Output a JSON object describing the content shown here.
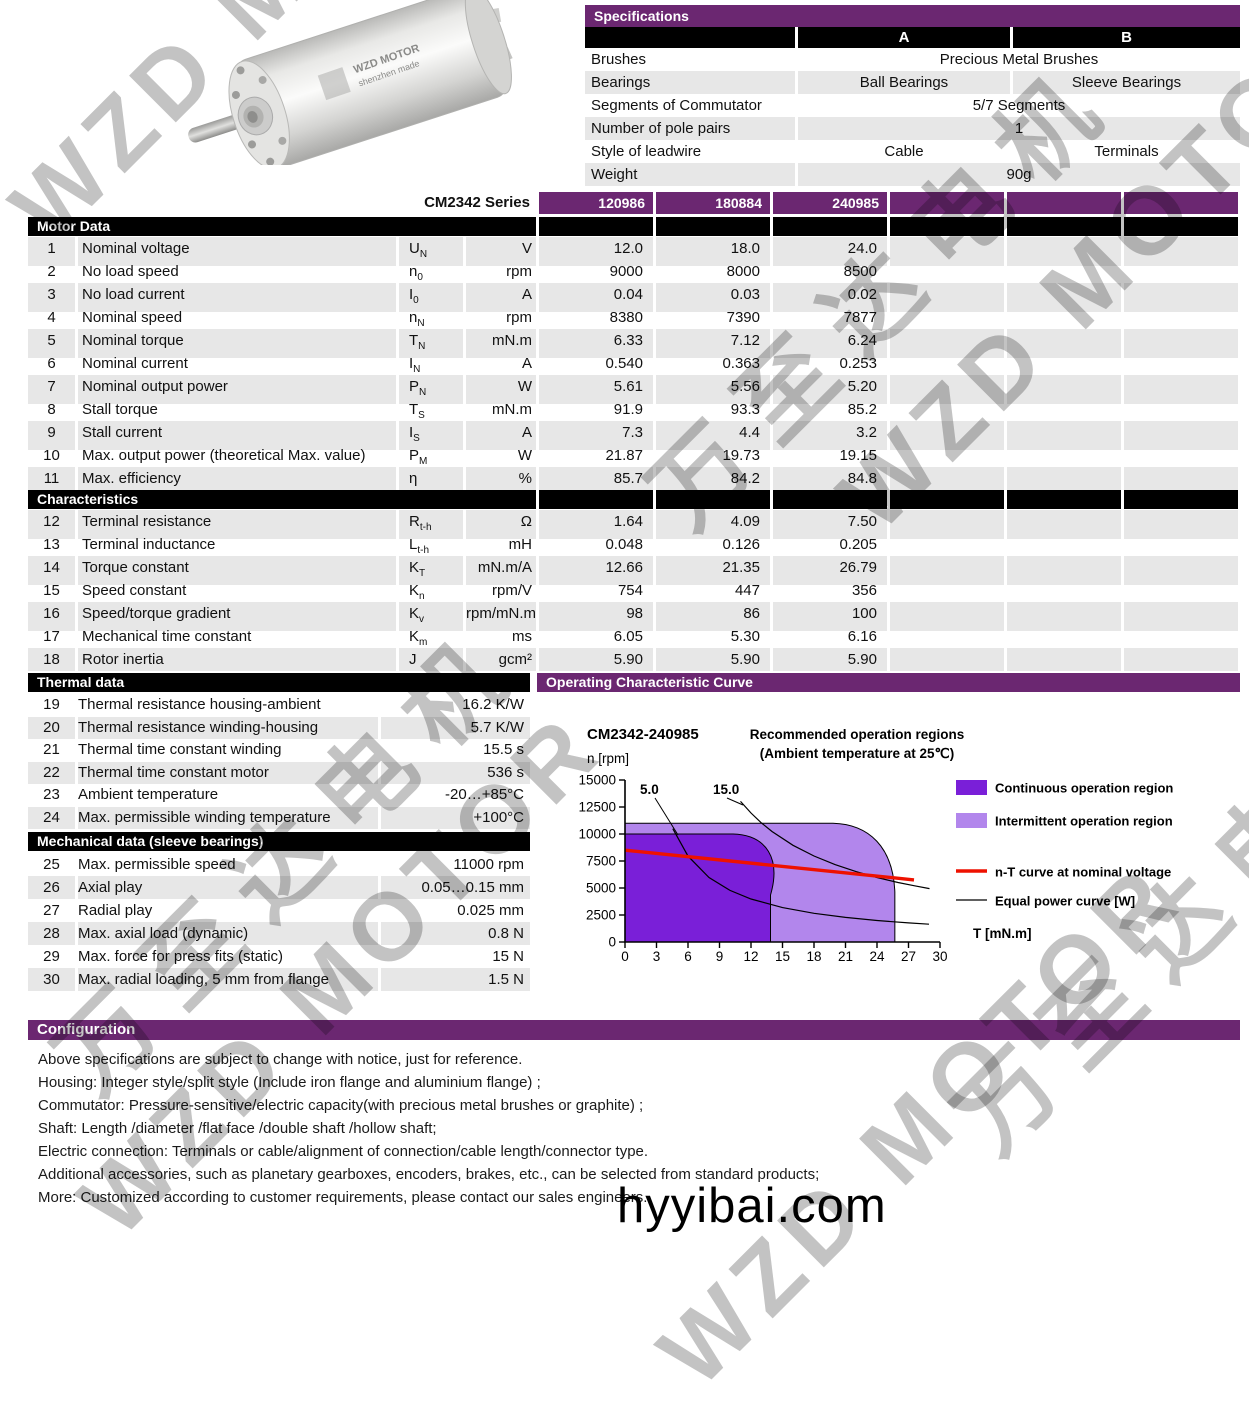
{
  "colors": {
    "header_purple": "#6B2771",
    "row_gray": "#e7e7e7",
    "continuous_region": "#7A1FD8",
    "intermittent_region": "#B286EC",
    "nt_curve_red": "#EE1100"
  },
  "watermark": {
    "cn": "万至达电机",
    "en": "WZD MOTOR",
    "site": "hyyibai.com"
  },
  "motor_photo": {
    "brand": "WZD MOTOR",
    "origin": "shenzhen made"
  },
  "specifications": {
    "title": "Specifications",
    "col_a": "A",
    "col_b": "B",
    "rows": [
      {
        "label": "Brushes",
        "a": "Precious Metal Brushes",
        "span": true
      },
      {
        "label": "Bearings",
        "a": "Ball Bearings",
        "b": "Sleeve Bearings",
        "span": false
      },
      {
        "label": "Segments of Commutator",
        "a": "5/7 Segments",
        "span": true
      },
      {
        "label": "Number of pole pairs",
        "a": "1",
        "span": true
      },
      {
        "label": "Style of leadwire",
        "a": "Cable",
        "b": "Terminals",
        "span": false
      },
      {
        "label": "Weight",
        "a": "90g",
        "span": true
      }
    ]
  },
  "series": {
    "label": "CM2342 Series",
    "variants": [
      "120986",
      "180884",
      "240985",
      "",
      "",
      ""
    ]
  },
  "motor_data": {
    "title": "Motor Data",
    "rows": [
      {
        "no": "1",
        "param": "Nominal voltage",
        "sym": "U",
        "sub": "N",
        "unit": "V",
        "values": [
          "12.0",
          "18.0",
          "24.0"
        ]
      },
      {
        "no": "2",
        "param": "No load speed",
        "sym": "n",
        "sub": "0",
        "unit": "rpm",
        "values": [
          "9000",
          "8000",
          "8500"
        ]
      },
      {
        "no": "3",
        "param": "No load current",
        "sym": "I",
        "sub": "0",
        "unit": "A",
        "values": [
          "0.04",
          "0.03",
          "0.02"
        ]
      },
      {
        "no": "4",
        "param": "Nominal speed",
        "sym": "n",
        "sub": "N",
        "unit": "rpm",
        "values": [
          "8380",
          "7390",
          "7877"
        ]
      },
      {
        "no": "5",
        "param": "Nominal torque",
        "sym": "T",
        "sub": "N",
        "unit": "mN.m",
        "values": [
          "6.33",
          "7.12",
          "6.24"
        ]
      },
      {
        "no": "6",
        "param": "Nominal current",
        "sym": "I",
        "sub": "N",
        "unit": "A",
        "values": [
          "0.540",
          "0.363",
          "0.253"
        ]
      },
      {
        "no": "7",
        "param": "Nominal output power",
        "sym": "P",
        "sub": "N",
        "unit": "W",
        "values": [
          "5.61",
          "5.56",
          "5.20"
        ]
      },
      {
        "no": "8",
        "param": "Stall torque",
        "sym": "T",
        "sub": "S",
        "unit": "mN.m",
        "values": [
          "91.9",
          "93.3",
          "85.2"
        ]
      },
      {
        "no": "9",
        "param": "Stall current",
        "sym": "I",
        "sub": "S",
        "unit": "A",
        "values": [
          "7.3",
          "4.4",
          "3.2"
        ]
      },
      {
        "no": "10",
        "param": "Max. output power (theoretical Max. value)",
        "sym": "P",
        "sub": "M",
        "unit": "W",
        "values": [
          "21.87",
          "19.73",
          "19.15"
        ]
      },
      {
        "no": "11",
        "param": "Max. efficiency",
        "sym": "η",
        "sub": "",
        "unit": "%",
        "values": [
          "85.7",
          "84.2",
          "84.8"
        ]
      }
    ]
  },
  "characteristics": {
    "title": "Characteristics",
    "rows": [
      {
        "no": "12",
        "param": "Terminal resistance",
        "sym": "R",
        "sub": "t-h",
        "unit": "Ω",
        "values": [
          "1.64",
          "4.09",
          "7.50"
        ]
      },
      {
        "no": "13",
        "param": "Terminal inductance",
        "sym": "L",
        "sub": "t-h",
        "unit": "mH",
        "values": [
          "0.048",
          "0.126",
          "0.205"
        ]
      },
      {
        "no": "14",
        "param": "Torque constant",
        "sym": "K",
        "sub": "T",
        "unit": "mN.m/A",
        "values": [
          "12.66",
          "21.35",
          "26.79"
        ]
      },
      {
        "no": "15",
        "param": "Speed constant",
        "sym": "K",
        "sub": "n",
        "unit": "rpm/V",
        "values": [
          "754",
          "447",
          "356"
        ]
      },
      {
        "no": "16",
        "param": "Speed/torque gradient",
        "sym": "K",
        "sub": "v",
        "unit": "rpm/mN.m",
        "values": [
          "98",
          "86",
          "100"
        ]
      },
      {
        "no": "17",
        "param": "Mechanical time constant",
        "sym": "K",
        "sub": "m",
        "unit": "ms",
        "values": [
          "6.05",
          "5.30",
          "6.16"
        ]
      },
      {
        "no": "18",
        "param": "Rotor inertia",
        "sym": "J",
        "sub": "",
        "unit": "gcm²",
        "values": [
          "5.90",
          "5.90",
          "5.90"
        ]
      }
    ]
  },
  "thermal": {
    "title": "Thermal data",
    "rows": [
      {
        "no": "19",
        "param": "Thermal resistance housing-ambient",
        "value": "16.2 K/W"
      },
      {
        "no": "20",
        "param": "Thermal resistance winding-housing",
        "value": "5.7 K/W"
      },
      {
        "no": "21",
        "param": "Thermal time constant winding",
        "value": "15.5 s"
      },
      {
        "no": "22",
        "param": "Thermal time constant motor",
        "value": "536 s"
      },
      {
        "no": "23",
        "param": "Ambient temperature",
        "value": "-20…+85°C"
      },
      {
        "no": "24",
        "param": "Max. permissible winding temperature",
        "value": "+100°C"
      }
    ]
  },
  "mechanical": {
    "title": "Mechanical data (sleeve bearings)",
    "rows": [
      {
        "no": "25",
        "param": "Max. permissible speed",
        "value": "11000 rpm"
      },
      {
        "no": "26",
        "param": "Axial play",
        "value": "0.05…0.15 mm"
      },
      {
        "no": "27",
        "param": "Radial play",
        "value": "0.025 mm"
      },
      {
        "no": "28",
        "param": "Max. axial load (dynamic)",
        "value": "0.8 N"
      },
      {
        "no": "29",
        "param": "Max. force for press fits (static)",
        "value": "15 N"
      },
      {
        "no": "30",
        "param": "Max. radial loading, 5 mm from flange",
        "value": "1.5 N"
      }
    ]
  },
  "chart_data": {
    "type": "area",
    "section_title": "Operating Characteristic Curve",
    "title": "CM2342-240985",
    "ylabel": "n [rpm]",
    "xlabel": "T [mN.m]",
    "subtitle1": "Recommended operation regions",
    "subtitle2": "(Ambient temperature at 25℃)",
    "x_ticks": [
      "0",
      "3",
      "6",
      "9",
      "12",
      "15",
      "18",
      "21",
      "24",
      "27",
      "30"
    ],
    "y_ticks": [
      "15000",
      "12500",
      "10000",
      "7500",
      "5000",
      "2500",
      "0"
    ],
    "xlim": [
      0,
      30
    ],
    "ylim": [
      0,
      15000
    ],
    "regions": {
      "continuous": {
        "torque_max_mNm": 15,
        "speed_max_rpm": 10000
      },
      "intermittent": {
        "torque_max_mNm": 25.7,
        "speed_max_rpm": 11000
      }
    },
    "nt_line": {
      "n_at_0": 8500,
      "n_at_27_5": 5750
    },
    "power_curve_labels": [
      "5.0",
      "15.0"
    ],
    "legend": [
      {
        "swatch": "box-dark",
        "label": "Continuous operation region"
      },
      {
        "swatch": "box-light",
        "label": "Intermittent operation region"
      },
      {
        "swatch": "line-red",
        "label": "n-T curve at nominal voltage"
      },
      {
        "swatch": "line-black",
        "label": "Equal power curve [W]"
      }
    ]
  },
  "configuration": {
    "title": "Configuration",
    "lines": [
      "Above specifications are subject to change with notice, just for reference.",
      "Housing: Integer style/split style (Include iron flange and aluminium flange) ;",
      "Commutator: Pressure-sensitive/electric capacity(with precious metal brushes or graphite) ;",
      "Shaft: Length /diameter /flat face /double shaft /hollow shaft;",
      "Electric connection: Terminals or cable/alignment of connection/cable length/connector type.",
      "Additional accessories, such as planetary gearboxes, encoders, brakes, etc., can be selected from standard products;",
      "More: Customized according to customer requirements, please contact our sales engineers."
    ]
  }
}
